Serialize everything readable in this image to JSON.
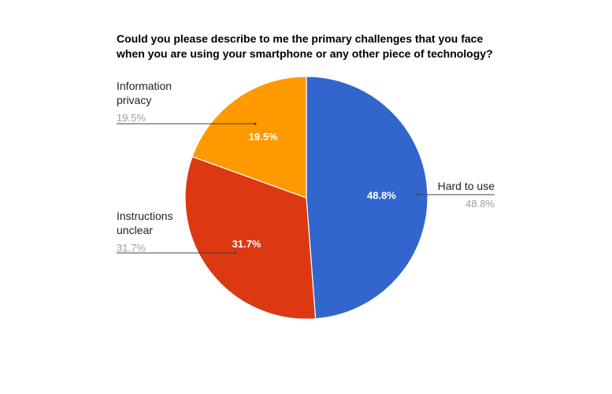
{
  "chart_data": {
    "type": "pie",
    "title": [
      "Could you please describe to me the primary challenges that you face",
      "when you are using your smartphone or any other piece of technology?"
    ],
    "slices": [
      {
        "label": [
          "Hard to use"
        ],
        "value": 48.8,
        "value_label": "48.8%",
        "color": "#3366cc"
      },
      {
        "label": [
          "Instructions",
          "unclear"
        ],
        "value": 31.7,
        "value_label": "31.7%",
        "color": "#dc3912"
      },
      {
        "label": [
          "Information",
          "privacy"
        ],
        "value": 19.5,
        "value_label": "19.5%",
        "color": "#ff9900"
      }
    ],
    "start_angle_deg": 0,
    "direction": "clockwise",
    "legend": "labeled"
  }
}
